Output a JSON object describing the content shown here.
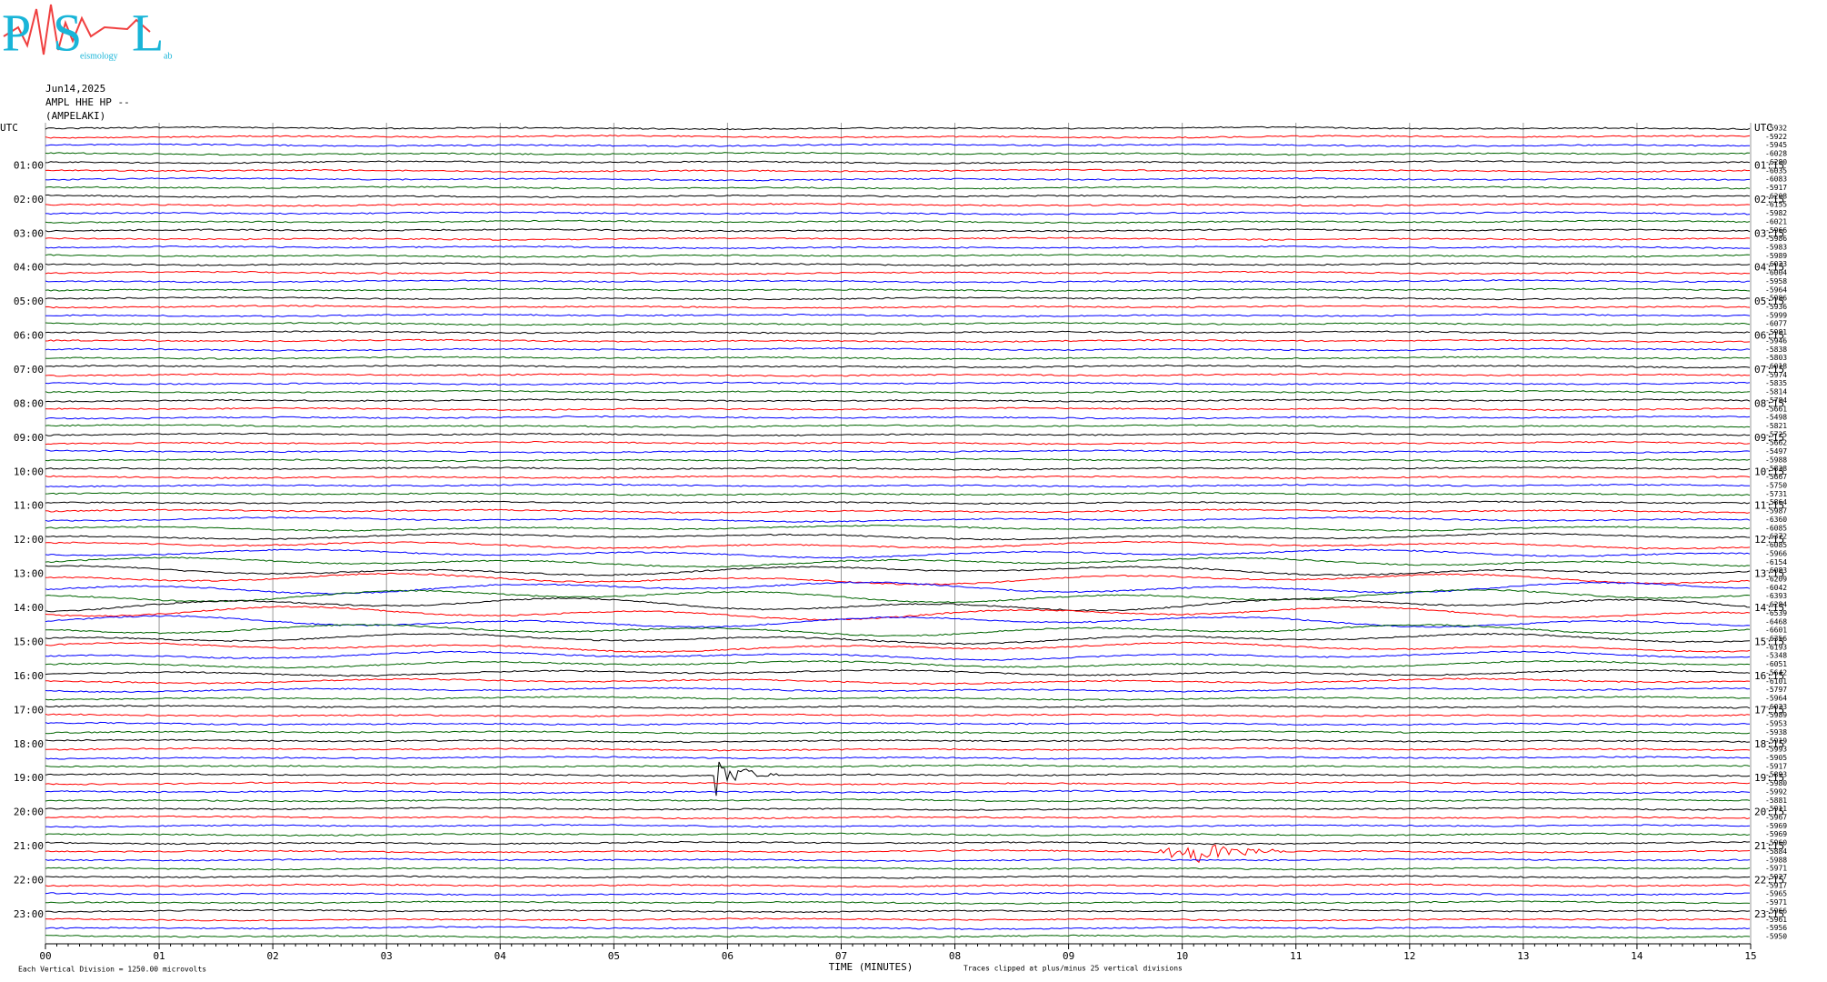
{
  "logo": {
    "letters": [
      "P",
      "S",
      "L"
    ],
    "words": [
      "eismology",
      "ab"
    ]
  },
  "header": {
    "date": "Jun14,2025",
    "station": "AMPL HHE HP --",
    "place": "(AMPELAKI)"
  },
  "left_labels": [
    "UTC",
    "01:00",
    "02:00",
    "03:00",
    "04:00",
    "05:00",
    "06:00",
    "07:00",
    "08:00",
    "09:00",
    "10:00",
    "11:00",
    "12:00",
    "13:00",
    "14:00",
    "15:00",
    "16:00",
    "17:00",
    "18:00",
    "19:00",
    "20:00",
    "21:00",
    "22:00",
    "23:00"
  ],
  "right_labels": [
    "UTC",
    "01:15",
    "02:15",
    "03:15",
    "04:15",
    "05:15",
    "06:15",
    "07:15",
    "08:15",
    "09:15",
    "10:15",
    "11:15",
    "12:15",
    "13:15",
    "14:15",
    "15:15",
    "16:15",
    "17:15",
    "18:15",
    "19:15",
    "20:15",
    "21:15",
    "22:15",
    "23:15"
  ],
  "amplitude_labels": [
    -5932,
    -5922,
    -5945,
    -6028,
    -6280,
    -6035,
    -6083,
    -5917,
    -6208,
    -6155,
    -5982,
    -6021,
    -5966,
    -5986,
    -5983,
    -5989,
    -6033,
    -6004,
    -5958,
    -5964,
    -5986,
    -5936,
    -5999,
    -6077,
    -5981,
    -5946,
    -5838,
    -5803,
    -6018,
    -5974,
    -5835,
    -5814,
    -5784,
    -5661,
    -5498,
    -5821,
    -5725,
    -5662,
    -5497,
    -5988,
    -5838,
    -5667,
    -5750,
    -5731,
    -5864,
    -5987,
    -6360,
    -6085,
    -6372,
    -6085,
    -5966,
    -6154,
    -6083,
    -6209,
    -6042,
    -6393,
    -6284,
    -6539,
    -6468,
    -6601,
    -6356,
    -6193,
    -5348,
    -6051,
    -5642,
    -6101,
    -5797,
    -5964,
    -6033,
    -5989,
    -5953,
    -5938,
    -5919,
    -5993,
    -5905,
    -5917,
    -5893,
    -5980,
    -5992,
    -5881,
    -5911,
    -5967,
    -5969,
    -5969,
    -5960,
    -5884,
    -5988,
    -5971,
    -5927,
    -5917,
    -5965,
    -5971,
    -5966,
    -5961,
    -5956,
    -5950
  ],
  "x_ticks": [
    "00",
    "01",
    "02",
    "03",
    "04",
    "05",
    "06",
    "07",
    "08",
    "09",
    "10",
    "11",
    "12",
    "13",
    "14",
    "15"
  ],
  "x_label": "TIME (MINUTES)",
  "footer": {
    "scale": "Each Vertical Division = 1250.00 microvolts",
    "clip": "Traces clipped at plus/minus 25 vertical divisions"
  },
  "trace_colors": [
    "#000000",
    "#ff0000",
    "#0000ff",
    "#006400"
  ]
}
